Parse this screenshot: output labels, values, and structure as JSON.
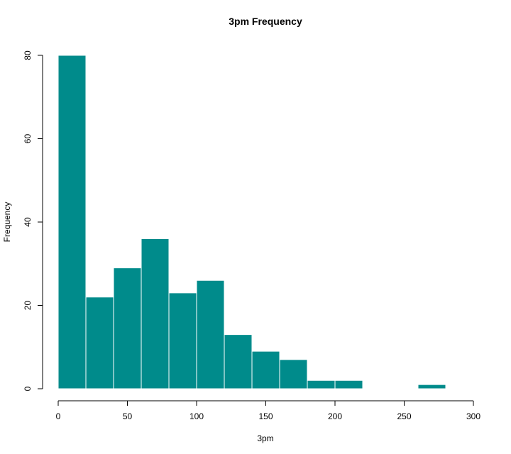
{
  "chart_data": {
    "type": "bar",
    "title": "3pm Frequency",
    "xlabel": "3pm",
    "ylabel": "Frequency",
    "bar_color": "#008b8b",
    "bar_border_color": "#ffffff",
    "grid": false,
    "xlim": [
      0,
      300
    ],
    "ylim": [
      0,
      80
    ],
    "x_ticks": [
      0,
      50,
      100,
      150,
      200,
      250,
      300
    ],
    "y_ticks": [
      0,
      20,
      40,
      60,
      80
    ],
    "bins": [
      {
        "start": 0,
        "end": 20,
        "count": 80
      },
      {
        "start": 20,
        "end": 40,
        "count": 22
      },
      {
        "start": 40,
        "end": 60,
        "count": 29
      },
      {
        "start": 60,
        "end": 80,
        "count": 36
      },
      {
        "start": 80,
        "end": 100,
        "count": 23
      },
      {
        "start": 100,
        "end": 120,
        "count": 26
      },
      {
        "start": 120,
        "end": 140,
        "count": 13
      },
      {
        "start": 140,
        "end": 160,
        "count": 9
      },
      {
        "start": 160,
        "end": 180,
        "count": 7
      },
      {
        "start": 180,
        "end": 200,
        "count": 2
      },
      {
        "start": 200,
        "end": 220,
        "count": 2
      },
      {
        "start": 220,
        "end": 240,
        "count": 0
      },
      {
        "start": 240,
        "end": 260,
        "count": 0
      },
      {
        "start": 260,
        "end": 280,
        "count": 1
      }
    ]
  }
}
